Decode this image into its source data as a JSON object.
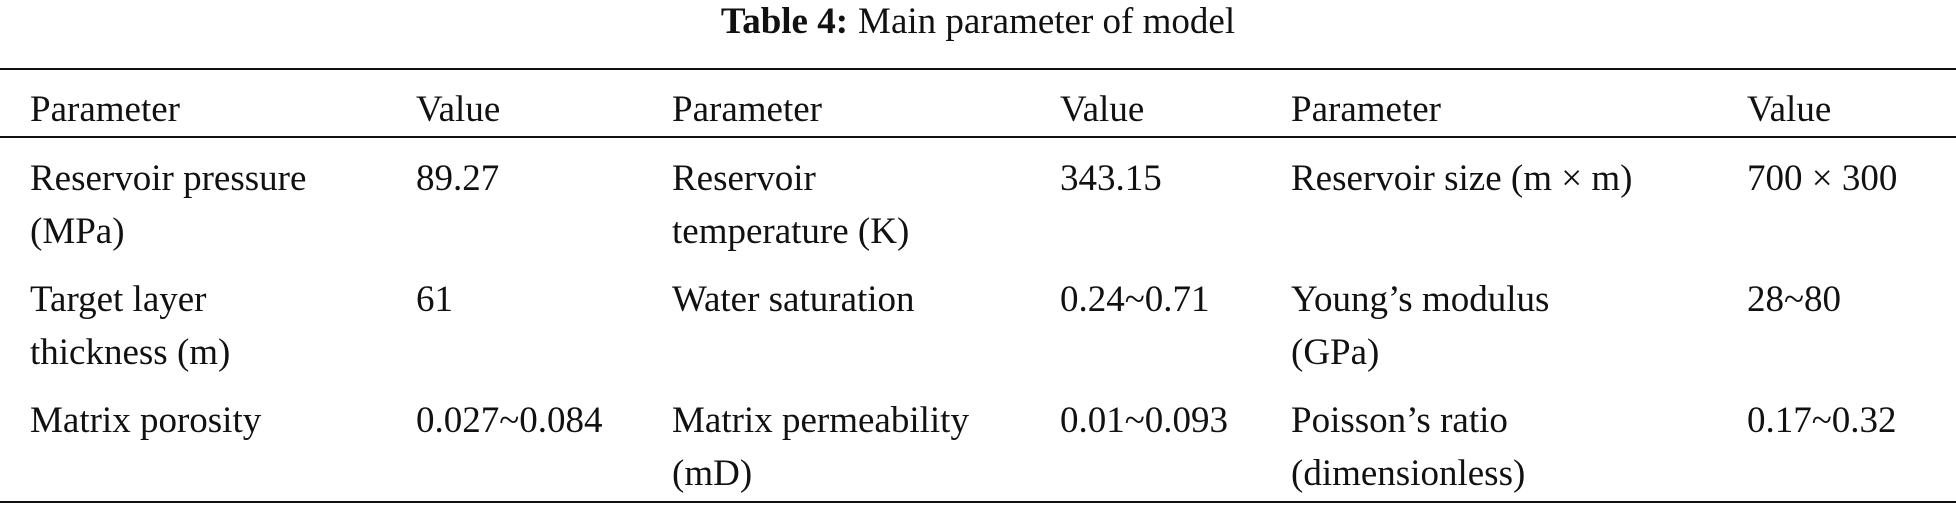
{
  "header": {
    "label": "Table 4:",
    "title": "Main parameter of model"
  },
  "table": {
    "columns": [
      "Parameter",
      "Value",
      "Parameter",
      "Value",
      "Parameter",
      "Value"
    ],
    "rows": [
      [
        "Reservoir pressure\n(MPa)",
        "89.27",
        "Reservoir\ntemperature (K)",
        "343.15",
        "Reservoir size (m × m)",
        "700 × 300"
      ],
      [
        "Target layer\nthickness (m)",
        "61",
        "Water saturation",
        "0.24~0.71",
        "Young’s modulus\n(GPa)",
        "28~80"
      ],
      [
        "Matrix porosity",
        "0.027~0.084",
        "Matrix permeability\n(mD)",
        "0.01~0.093",
        "Poisson’s ratio\n(dimensionless)",
        "0.17~0.32"
      ]
    ]
  }
}
